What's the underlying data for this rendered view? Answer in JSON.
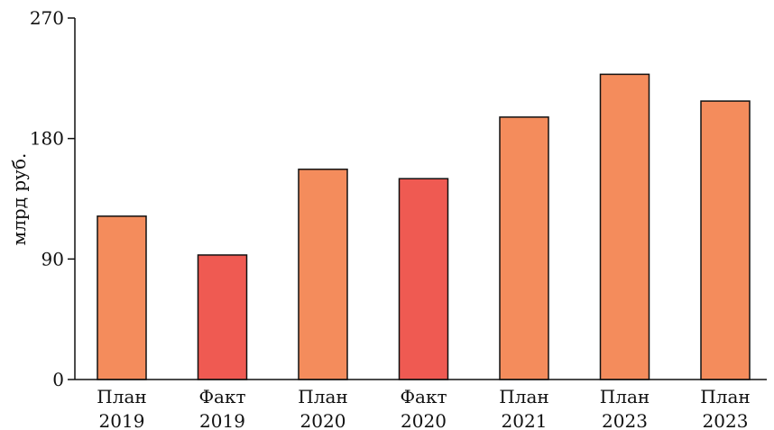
{
  "chart_data": {
    "type": "bar",
    "title": "",
    "xlabel": "",
    "ylabel": "млрд руб.",
    "ylim": [
      0,
      270
    ],
    "yticks": [
      0,
      90,
      180,
      270
    ],
    "grid": false,
    "legend": "none",
    "categories": [
      {
        "line1": "План",
        "line2": "2019",
        "kind": "plan"
      },
      {
        "line1": "Факт",
        "line2": "2019",
        "kind": "fact"
      },
      {
        "line1": "План",
        "line2": "2020",
        "kind": "plan"
      },
      {
        "line1": "Факт",
        "line2": "2020",
        "kind": "fact"
      },
      {
        "line1": "План",
        "line2": "2021",
        "kind": "plan"
      },
      {
        "line1": "План",
        "line2": "2023",
        "kind": "plan"
      },
      {
        "line1": "План",
        "line2": "2023",
        "kind": "plan"
      }
    ],
    "values": [
      122,
      93,
      157,
      150,
      196,
      228,
      208
    ],
    "colors": {
      "plan": "#f48c5c",
      "fact": "#ef5a52",
      "axis": "#111111",
      "background": "#ffffff"
    }
  }
}
